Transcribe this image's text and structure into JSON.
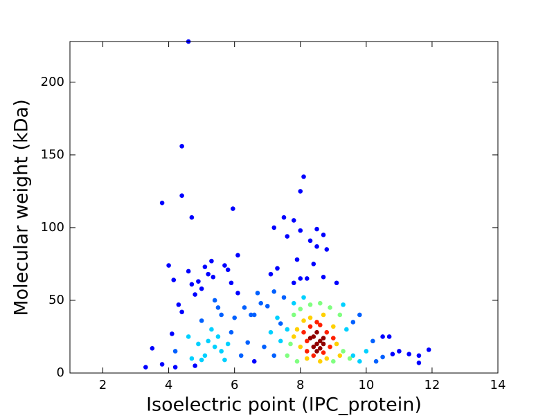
{
  "chart_data": {
    "type": "scatter",
    "x_label": "Isoelectric point (IPC_protein)",
    "y_label": "Molecular weight (kDa)",
    "xlim": [
      1,
      14
    ],
    "xticks": [
      2,
      4,
      6,
      8,
      10,
      12,
      14
    ],
    "ylim": [
      0,
      228
    ],
    "yticks": [
      0,
      50,
      100,
      150,
      200
    ],
    "series": [
      {
        "color": "#0000ff",
        "x": [
          3.3,
          3.5,
          3.8,
          3.8,
          4.0,
          4.1,
          4.15,
          4.2,
          4.3,
          4.4,
          4.4,
          4.4,
          4.6,
          4.6,
          4.7,
          4.7,
          4.8,
          4.9,
          5.0,
          5.1,
          5.2,
          5.3,
          5.35,
          5.7,
          5.8,
          5.9,
          5.95,
          6.1,
          6.1,
          7.1,
          7.2,
          7.3,
          7.5,
          7.6,
          7.8,
          7.9,
          8.0,
          8.1,
          8.0,
          8.3,
          8.4,
          8.5,
          8.5,
          8.7,
          8.8,
          8.7,
          9.1,
          8.2,
          8.0,
          7.8,
          10.5,
          10.7,
          10.8,
          11.0,
          11.3,
          11.6,
          11.6,
          11.9,
          6.6,
          4.8
        ],
        "values": [
          4,
          17,
          6,
          117,
          74,
          27,
          64,
          4,
          47,
          156,
          122,
          42,
          228,
          70,
          107,
          61,
          54,
          63,
          58,
          73,
          68,
          77,
          66,
          74,
          71,
          62,
          113,
          81,
          55,
          68,
          100,
          72,
          107,
          94,
          105,
          78,
          125,
          135,
          98,
          91,
          75,
          87,
          99,
          95,
          85,
          66,
          62,
          65,
          65,
          62,
          25,
          25,
          13,
          15,
          13,
          12,
          7,
          16,
          8,
          5
        ]
      },
      {
        "color": "#0060ff",
        "x": [
          5.0,
          5.4,
          5.5,
          5.6,
          6.0,
          6.3,
          6.5,
          6.7,
          6.8,
          7.0,
          7.5,
          7.2,
          6.6,
          9.6,
          9.8,
          10.2,
          10.3,
          10.5,
          7.2,
          6.2,
          6.4,
          4.2,
          6.9,
          5.9,
          7.4
        ],
        "values": [
          36,
          50,
          45,
          40,
          38,
          45,
          40,
          55,
          48,
          46,
          52,
          56,
          40,
          35,
          40,
          22,
          8,
          11,
          12,
          12,
          21,
          15,
          18,
          28,
          34
        ]
      },
      {
        "color": "#00d0ff",
        "x": [
          4.6,
          4.9,
          5.2,
          5.4,
          5.6,
          5.1,
          4.7,
          5.3,
          5.8,
          5.5,
          7.3,
          7.6,
          7.4,
          7.8,
          8.1,
          9.3,
          9.6,
          9.8,
          10.0,
          7.1,
          5.0,
          5.7,
          9.4
        ],
        "values": [
          25,
          20,
          22,
          18,
          15,
          12,
          10,
          30,
          20,
          25,
          38,
          30,
          22,
          48,
          52,
          47,
          12,
          8,
          15,
          28,
          9,
          9,
          30
        ]
      },
      {
        "color": "#80ff80",
        "x": [
          7.7,
          7.8,
          8.0,
          8.9,
          9.2,
          9.3,
          9.5,
          7.6,
          7.9,
          9.0,
          8.3,
          8.6
        ],
        "values": [
          20,
          40,
          44,
          45,
          40,
          15,
          10,
          12,
          8,
          8,
          47,
          48
        ]
      },
      {
        "color": "#ffd000",
        "x": [
          7.9,
          8.0,
          8.1,
          8.3,
          8.7,
          9.0,
          9.1,
          9.2,
          8.2,
          8.6,
          8.8,
          7.8
        ],
        "values": [
          30,
          18,
          36,
          38,
          40,
          32,
          20,
          12,
          10,
          8,
          10,
          25
        ]
      },
      {
        "color": "#ff2000",
        "x": [
          8.1,
          8.2,
          8.3,
          8.4,
          8.6,
          8.8,
          8.9,
          9.0,
          8.2,
          8.7,
          8.5
        ],
        "values": [
          28,
          15,
          32,
          12,
          33,
          28,
          18,
          24,
          22,
          14,
          35
        ]
      },
      {
        "color": "#900000",
        "x": [
          8.4,
          8.5,
          8.6,
          8.5,
          8.7,
          8.4,
          8.6,
          8.3,
          8.7,
          8.5
        ],
        "values": [
          25,
          20,
          22,
          28,
          24,
          18,
          17,
          24,
          20,
          15
        ]
      }
    ]
  }
}
